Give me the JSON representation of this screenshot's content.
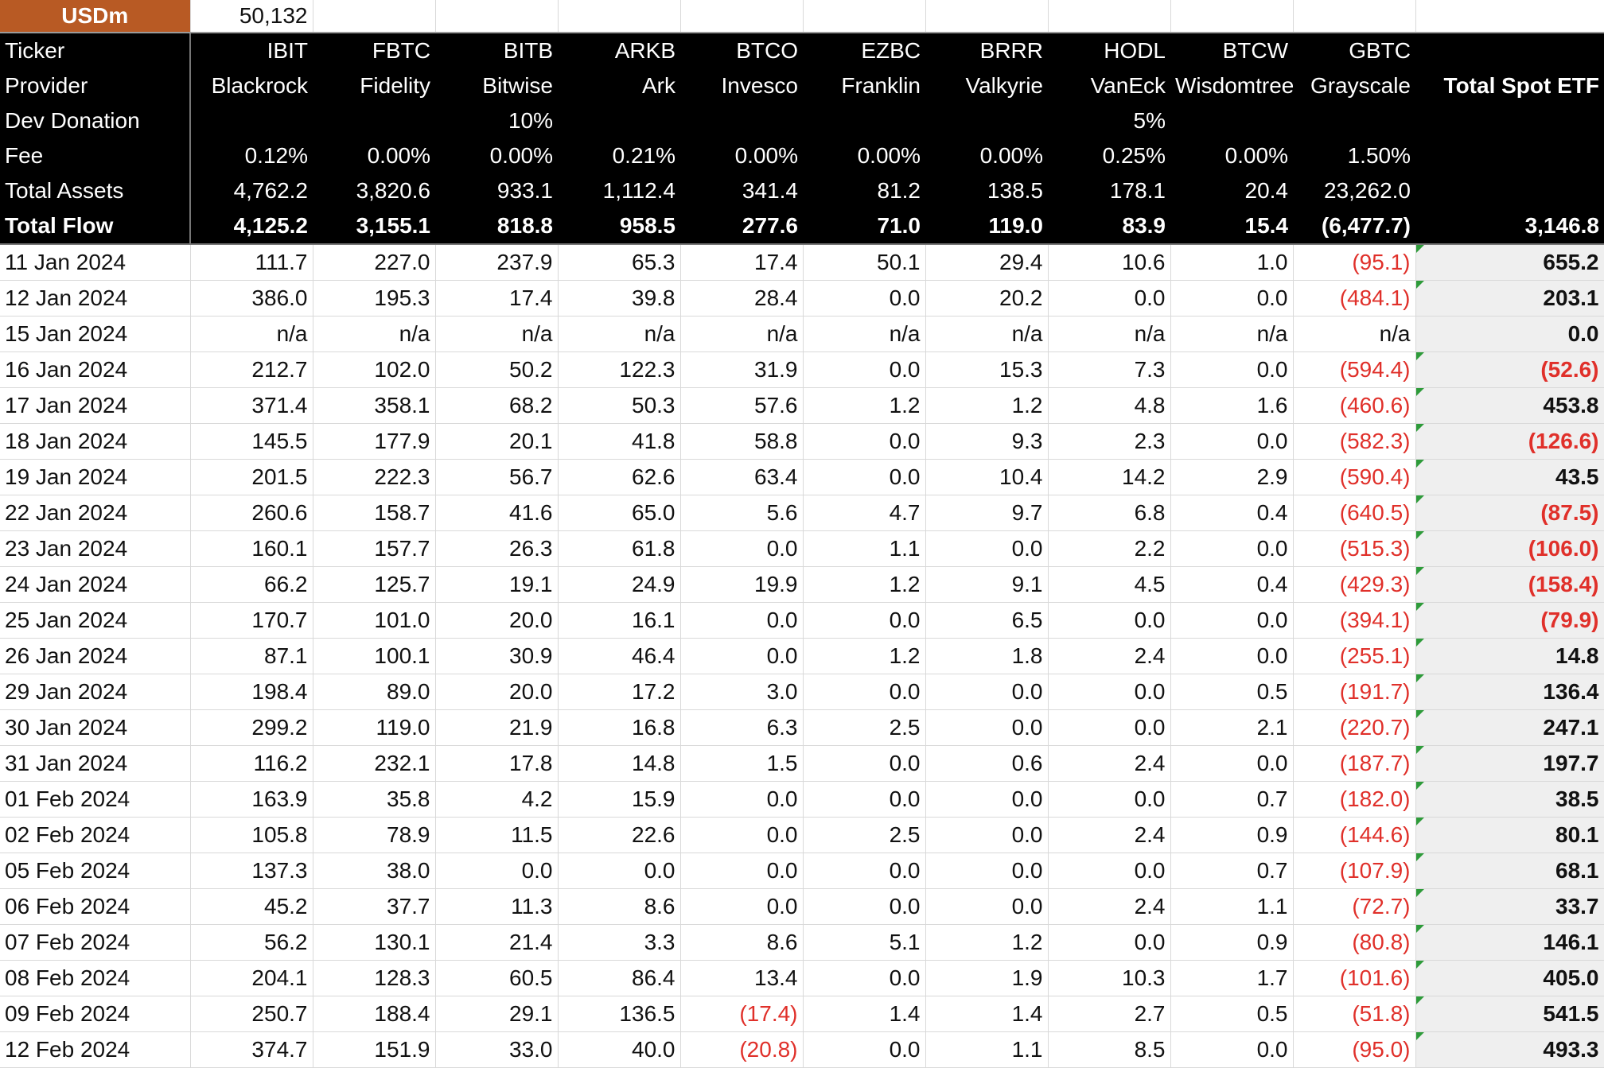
{
  "unit_label": "USDm",
  "unit_value": "50,132",
  "header_rows": [
    {
      "label": "Ticker",
      "values": [
        "IBIT",
        "FBTC",
        "BITB",
        "ARKB",
        "BTCO",
        "EZBC",
        "BRRR",
        "HODL",
        "BTCW",
        "GBTC"
      ],
      "total": ""
    },
    {
      "label": "Provider",
      "values": [
        "Blackrock",
        "Fidelity",
        "Bitwise",
        "Ark",
        "Invesco",
        "Franklin",
        "Valkyrie",
        "VanEck",
        "Wisdomtree",
        "Grayscale"
      ],
      "total": "Total Spot ETF"
    },
    {
      "label": "Dev Donation",
      "values": [
        "",
        "",
        "10%",
        "",
        "",
        "",
        "",
        "5%",
        "",
        ""
      ],
      "total": ""
    },
    {
      "label": "Fee",
      "values": [
        "0.12%",
        "0.00%",
        "0.00%",
        "0.21%",
        "0.00%",
        "0.00%",
        "0.00%",
        "0.25%",
        "0.00%",
        "1.50%"
      ],
      "total": ""
    },
    {
      "label": "Total Assets",
      "values": [
        "4,762.2",
        "3,820.6",
        "933.1",
        "1,112.4",
        "341.4",
        "81.2",
        "138.5",
        "178.1",
        "20.4",
        "23,262.0"
      ],
      "total": ""
    },
    {
      "label": "Total Flow",
      "values": [
        "4,125.2",
        "3,155.1",
        "818.8",
        "958.5",
        "277.6",
        "71.0",
        "119.0",
        "83.9",
        "15.4",
        "(6,477.7)"
      ],
      "total": "3,146.8"
    }
  ],
  "rows": [
    {
      "date": "11 Jan 2024",
      "values": [
        "111.7",
        "227.0",
        "237.9",
        "65.3",
        "17.4",
        "50.1",
        "29.4",
        "10.6",
        "1.0",
        "(95.1)"
      ],
      "total": "655.2"
    },
    {
      "date": "12 Jan 2024",
      "values": [
        "386.0",
        "195.3",
        "17.4",
        "39.8",
        "28.4",
        "0.0",
        "20.2",
        "0.0",
        "0.0",
        "(484.1)"
      ],
      "total": "203.1"
    },
    {
      "date": "15 Jan 2024",
      "values": [
        "n/a",
        "n/a",
        "n/a",
        "n/a",
        "n/a",
        "n/a",
        "n/a",
        "n/a",
        "n/a",
        "n/a"
      ],
      "total": "0.0"
    },
    {
      "date": "16 Jan 2024",
      "values": [
        "212.7",
        "102.0",
        "50.2",
        "122.3",
        "31.9",
        "0.0",
        "15.3",
        "7.3",
        "0.0",
        "(594.4)"
      ],
      "total": "(52.6)"
    },
    {
      "date": "17 Jan 2024",
      "values": [
        "371.4",
        "358.1",
        "68.2",
        "50.3",
        "57.6",
        "1.2",
        "1.2",
        "4.8",
        "1.6",
        "(460.6)"
      ],
      "total": "453.8"
    },
    {
      "date": "18 Jan 2024",
      "values": [
        "145.5",
        "177.9",
        "20.1",
        "41.8",
        "58.8",
        "0.0",
        "9.3",
        "2.3",
        "0.0",
        "(582.3)"
      ],
      "total": "(126.6)"
    },
    {
      "date": "19 Jan 2024",
      "values": [
        "201.5",
        "222.3",
        "56.7",
        "62.6",
        "63.4",
        "0.0",
        "10.4",
        "14.2",
        "2.9",
        "(590.4)"
      ],
      "total": "43.5"
    },
    {
      "date": "22 Jan 2024",
      "values": [
        "260.6",
        "158.7",
        "41.6",
        "65.0",
        "5.6",
        "4.7",
        "9.7",
        "6.8",
        "0.4",
        "(640.5)"
      ],
      "total": "(87.5)"
    },
    {
      "date": "23 Jan 2024",
      "values": [
        "160.1",
        "157.7",
        "26.3",
        "61.8",
        "0.0",
        "1.1",
        "0.0",
        "2.2",
        "0.0",
        "(515.3)"
      ],
      "total": "(106.0)"
    },
    {
      "date": "24 Jan 2024",
      "values": [
        "66.2",
        "125.7",
        "19.1",
        "24.9",
        "19.9",
        "1.2",
        "9.1",
        "4.5",
        "0.4",
        "(429.3)"
      ],
      "total": "(158.4)"
    },
    {
      "date": "25 Jan 2024",
      "values": [
        "170.7",
        "101.0",
        "20.0",
        "16.1",
        "0.0",
        "0.0",
        "6.5",
        "0.0",
        "0.0",
        "(394.1)"
      ],
      "total": "(79.9)"
    },
    {
      "date": "26 Jan 2024",
      "values": [
        "87.1",
        "100.1",
        "30.9",
        "46.4",
        "0.0",
        "1.2",
        "1.8",
        "2.4",
        "0.0",
        "(255.1)"
      ],
      "total": "14.8"
    },
    {
      "date": "29 Jan 2024",
      "values": [
        "198.4",
        "89.0",
        "20.0",
        "17.2",
        "3.0",
        "0.0",
        "0.0",
        "0.0",
        "0.5",
        "(191.7)"
      ],
      "total": "136.4"
    },
    {
      "date": "30 Jan 2024",
      "values": [
        "299.2",
        "119.0",
        "21.9",
        "16.8",
        "6.3",
        "2.5",
        "0.0",
        "0.0",
        "2.1",
        "(220.7)"
      ],
      "total": "247.1"
    },
    {
      "date": "31 Jan 2024",
      "values": [
        "116.2",
        "232.1",
        "17.8",
        "14.8",
        "1.5",
        "0.0",
        "0.6",
        "2.4",
        "0.0",
        "(187.7)"
      ],
      "total": "197.7"
    },
    {
      "date": "01 Feb 2024",
      "values": [
        "163.9",
        "35.8",
        "4.2",
        "15.9",
        "0.0",
        "0.0",
        "0.0",
        "0.0",
        "0.7",
        "(182.0)"
      ],
      "total": "38.5"
    },
    {
      "date": "02 Feb 2024",
      "values": [
        "105.8",
        "78.9",
        "11.5",
        "22.6",
        "0.0",
        "2.5",
        "0.0",
        "2.4",
        "0.9",
        "(144.6)"
      ],
      "total": "80.1"
    },
    {
      "date": "05 Feb 2024",
      "values": [
        "137.3",
        "38.0",
        "0.0",
        "0.0",
        "0.0",
        "0.0",
        "0.0",
        "0.0",
        "0.7",
        "(107.9)"
      ],
      "total": "68.1"
    },
    {
      "date": "06 Feb 2024",
      "values": [
        "45.2",
        "37.7",
        "11.3",
        "8.6",
        "0.0",
        "0.0",
        "0.0",
        "2.4",
        "1.1",
        "(72.7)"
      ],
      "total": "33.7"
    },
    {
      "date": "07 Feb 2024",
      "values": [
        "56.2",
        "130.1",
        "21.4",
        "3.3",
        "8.6",
        "5.1",
        "1.2",
        "0.0",
        "0.9",
        "(80.8)"
      ],
      "total": "146.1"
    },
    {
      "date": "08 Feb 2024",
      "values": [
        "204.1",
        "128.3",
        "60.5",
        "86.4",
        "13.4",
        "0.0",
        "1.9",
        "10.3",
        "1.7",
        "(101.6)"
      ],
      "total": "405.0"
    },
    {
      "date": "09 Feb 2024",
      "values": [
        "250.7",
        "188.4",
        "29.1",
        "136.5",
        "(17.4)",
        "1.4",
        "1.4",
        "2.7",
        "0.5",
        "(51.8)"
      ],
      "total": "541.5"
    },
    {
      "date": "12 Feb 2024",
      "values": [
        "374.7",
        "151.9",
        "33.0",
        "40.0",
        "(20.8)",
        "0.0",
        "1.1",
        "8.5",
        "0.0",
        "(95.0)"
      ],
      "total": "493.3"
    }
  ],
  "colors": {
    "unit_cell": "#b85a24",
    "negative": "#e0302a",
    "header_bg": "#000000",
    "total_col_bg": "#efefef",
    "error_flag": "#2e9b3a"
  }
}
